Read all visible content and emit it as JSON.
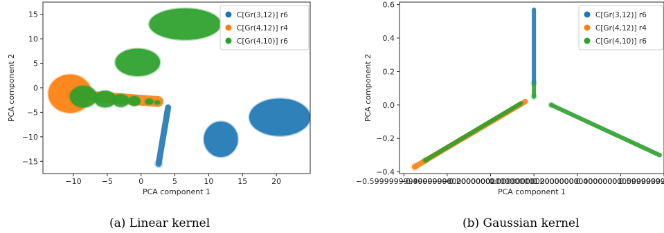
{
  "figure": {
    "captions": [
      "(a) Linear kernel",
      "(b) Gaussian kernel"
    ]
  },
  "colors": {
    "blue": "#1f77b4",
    "orange": "#ff7f0e",
    "green": "#2ca02c"
  },
  "chart_data": [
    {
      "type": "scatter",
      "caption": "(a) Linear kernel",
      "xlabel": "PCA component 1",
      "ylabel": "PCA component 2",
      "xlim": [
        -14.5,
        25
      ],
      "ylim": [
        -17.5,
        17.5
      ],
      "xticks": [
        -10,
        -5,
        0,
        5,
        10,
        15,
        20
      ],
      "yticks": [
        -15,
        -10,
        -5,
        0,
        5,
        10,
        15
      ],
      "legend": "top-right",
      "series": [
        {
          "name": "C[Gr(3,12)] r6",
          "color": "#1f77b4",
          "clusters": [
            {
              "shape": "blob",
              "cx": 20.5,
              "cy": -6.0,
              "rx": 4.5,
              "ry": 3.8
            },
            {
              "shape": "blob",
              "cx": 11.8,
              "cy": -10.5,
              "rx": 2.5,
              "ry": 3.6
            },
            {
              "shape": "band",
              "x1": 2.6,
              "y1": -15.5,
              "x2": 4.0,
              "y2": -4.0,
              "w": 0.9
            }
          ]
        },
        {
          "name": "C[Gr(4,12)] r4",
          "color": "#ff7f0e",
          "clusters": [
            {
              "shape": "blob",
              "cx": -10.5,
              "cy": -1.2,
              "rx": 3.2,
              "ry": 3.9
            },
            {
              "shape": "band",
              "x1": -10,
              "y1": -1.5,
              "x2": 2.5,
              "y2": -2.8,
              "w": 1.6
            }
          ]
        },
        {
          "name": "C[Gr(4,10)] r6",
          "color": "#2ca02c",
          "clusters": [
            {
              "shape": "blob",
              "cx": 6.5,
              "cy": 13.0,
              "rx": 5.3,
              "ry": 3.2
            },
            {
              "shape": "blob",
              "cx": -0.5,
              "cy": 5.2,
              "rx": 3.3,
              "ry": 2.8
            },
            {
              "shape": "blob",
              "cx": -8.5,
              "cy": -1.8,
              "rx": 2.0,
              "ry": 2.2
            },
            {
              "shape": "blob",
              "cx": -5.3,
              "cy": -2.3,
              "rx": 1.6,
              "ry": 1.7
            },
            {
              "shape": "blob",
              "cx": -3.0,
              "cy": -2.6,
              "rx": 1.2,
              "ry": 1.3
            },
            {
              "shape": "blob",
              "cx": -1.0,
              "cy": -2.7,
              "rx": 0.9,
              "ry": 1.0
            },
            {
              "shape": "blob",
              "cx": 1.2,
              "cy": -2.8,
              "rx": 0.6,
              "ry": 0.6
            },
            {
              "shape": "blob",
              "cx": 2.4,
              "cy": -3.0,
              "rx": 0.4,
              "ry": 0.4
            }
          ]
        }
      ]
    },
    {
      "type": "scatter",
      "caption": "(b) Gaussian kernel",
      "xlabel": "PCA component 1",
      "ylabel": "PCA component 2",
      "xlim": [
        -0.62,
        0.6
      ],
      "ylim": [
        -0.41,
        0.615
      ],
      "xticks": [
        -0.6,
        -0.4,
        -0.2,
        0.0,
        0.2,
        0.4,
        0.6
      ],
      "yticks": [
        -0.4,
        -0.2,
        0.0,
        0.2,
        0.4,
        0.6
      ],
      "legend": "top-right",
      "series": [
        {
          "name": "C[Gr(3,12)] r6",
          "color": "#1f77b4",
          "clusters": [
            {
              "shape": "band",
              "x1": 0.0,
              "y1": 0.13,
              "x2": 0.0,
              "y2": 0.57,
              "w": 0.012
            }
          ]
        },
        {
          "name": "C[Gr(4,12)] r4",
          "color": "#ff7f0e",
          "clusters": [
            {
              "shape": "band",
              "x1": -0.55,
              "y1": -0.37,
              "x2": -0.04,
              "y2": 0.02,
              "w": 0.025
            }
          ]
        },
        {
          "name": "C[Gr(4,10)] r6",
          "color": "#2ca02c",
          "clusters": [
            {
              "shape": "band",
              "x1": -0.5,
              "y1": -0.33,
              "x2": -0.06,
              "y2": 0.01,
              "w": 0.02
            },
            {
              "shape": "band",
              "x1": 0.08,
              "y1": 0.0,
              "x2": 0.58,
              "y2": -0.3,
              "w": 0.02
            },
            {
              "shape": "band",
              "x1": 0.0,
              "y1": 0.05,
              "x2": 0.0,
              "y2": 0.12,
              "w": 0.012
            }
          ]
        }
      ]
    }
  ]
}
